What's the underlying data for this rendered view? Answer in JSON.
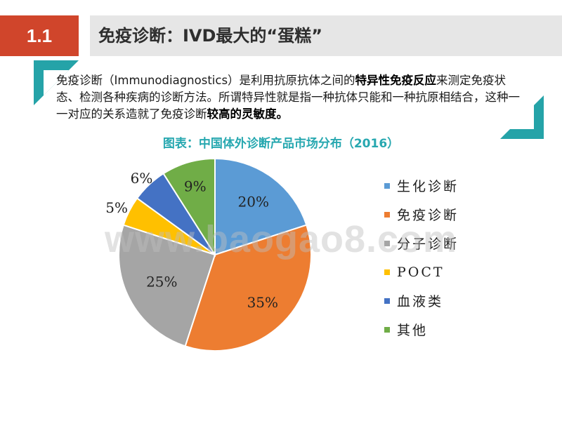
{
  "header": {
    "section_number": "1.1",
    "title": "免疫诊断：IVD最大的“蛋糕”"
  },
  "intro": {
    "part1": "免疫诊断（Immunodiagnostics）是利用抗原抗体之间的",
    "bold1": "特异性免疫反应",
    "part2": "来测定免疫状态、检测各种疾病的诊断方法。所谓特异性就是指一种抗体只能和一种抗原相结合，这种一一对应的关系造就了免疫诊断",
    "bold2": "较高的灵敏度。"
  },
  "chart_data": {
    "type": "pie",
    "title": "图表：中国体外诊断产品市场分布（2016）",
    "legend_position": "right",
    "slices": [
      {
        "label": "生化诊断",
        "value": 20,
        "display": "20%",
        "color": "#5b9bd5"
      },
      {
        "label": "免疫诊断",
        "value": 35,
        "display": "35%",
        "color": "#ed7d31"
      },
      {
        "label": "分子诊断",
        "value": 25,
        "display": "25%",
        "color": "#a5a5a5"
      },
      {
        "label": "POCT",
        "value": 5,
        "display": "5%",
        "color": "#ffc000"
      },
      {
        "label": "血液类",
        "value": 6,
        "display": "6%",
        "color": "#4472c4"
      },
      {
        "label": "其他",
        "value": 9,
        "display": "9%",
        "color": "#70ad47"
      }
    ]
  },
  "watermark": "www.baogao8.com",
  "colors": {
    "accent_red": "#d0452b",
    "accent_teal": "#25a3a8",
    "header_gray": "#e6e6e6"
  }
}
